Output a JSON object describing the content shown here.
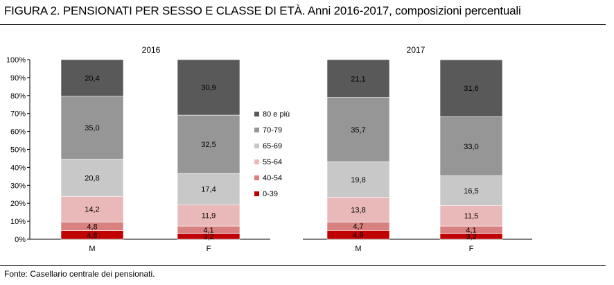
{
  "header": {
    "title_bold": "FIGURA 2. PENSIONATI PER SESSO E CLASSE DI ETÀ.",
    "title_rest": " Anni 2016-2017, composizioni percentuali"
  },
  "footer": {
    "source": "Fonte: Casellario centrale dei pensionati."
  },
  "chart_data": {
    "type": "bar",
    "stacked": true,
    "ylim": [
      0,
      100
    ],
    "yticks": [
      "0%",
      "10%",
      "20%",
      "30%",
      "40%",
      "50%",
      "60%",
      "70%",
      "80%",
      "90%",
      "100%"
    ],
    "legend_position": "center",
    "series_legend": [
      {
        "name": "80 e più",
        "color": "#595959"
      },
      {
        "name": "70-79",
        "color": "#969696"
      },
      {
        "name": "65-69",
        "color": "#c8c8c8"
      },
      {
        "name": "55-64",
        "color": "#e9b8b8"
      },
      {
        "name": "40-54",
        "color": "#d98080"
      },
      {
        "name": "0-39",
        "color": "#c00000"
      }
    ],
    "panels": [
      {
        "title": "2016",
        "categories": [
          "M",
          "F"
        ],
        "series": [
          {
            "name": "0-39",
            "values": [
              4.8,
              3.2
            ]
          },
          {
            "name": "40-54",
            "values": [
              4.8,
              4.1
            ]
          },
          {
            "name": "55-64",
            "values": [
              14.2,
              11.9
            ]
          },
          {
            "name": "65-69",
            "values": [
              20.8,
              17.4
            ]
          },
          {
            "name": "70-79",
            "values": [
              35.0,
              32.5
            ]
          },
          {
            "name": "80 e più",
            "values": [
              20.4,
              30.9
            ]
          }
        ],
        "labels": [
          [
            "4,8",
            "3,2"
          ],
          [
            "4,8",
            "4,1"
          ],
          [
            "14,2",
            "11,9"
          ],
          [
            "20,8",
            "17,4"
          ],
          [
            "35,0",
            "32,5"
          ],
          [
            "20,4",
            "30,9"
          ]
        ]
      },
      {
        "title": "2017",
        "categories": [
          "M",
          "F"
        ],
        "series": [
          {
            "name": "0-39",
            "values": [
              4.9,
              3.2
            ]
          },
          {
            "name": "40-54",
            "values": [
              4.7,
              4.1
            ]
          },
          {
            "name": "55-64",
            "values": [
              13.8,
              11.5
            ]
          },
          {
            "name": "65-69",
            "values": [
              19.8,
              16.5
            ]
          },
          {
            "name": "70-79",
            "values": [
              35.7,
              33.0
            ]
          },
          {
            "name": "80 e più",
            "values": [
              21.1,
              31.6
            ]
          }
        ],
        "labels": [
          [
            "4,9",
            "3,2"
          ],
          [
            "4,7",
            "4,1"
          ],
          [
            "13,8",
            "11,5"
          ],
          [
            "19,8",
            "16,5"
          ],
          [
            "35,7",
            "33,0"
          ],
          [
            "21,1",
            "31,6"
          ]
        ]
      }
    ]
  }
}
